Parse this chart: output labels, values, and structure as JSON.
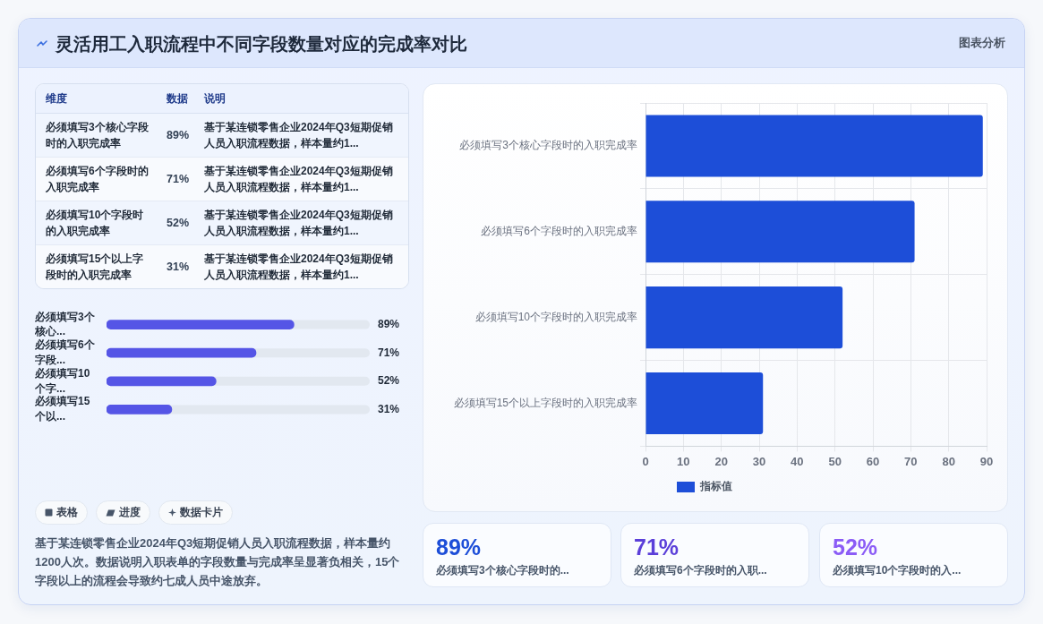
{
  "chart_data": [
    {
      "type": "other",
      "title": "灵活用工入职流程中不同字段数量对应的完成率对比",
      "annotations": [
        "图表分析"
      ]
    },
    {
      "type": "other",
      "categories": [
        "必须填写3个核心字段时的入职完成率",
        "必须填写6个字段时的入职完成率",
        "必须填写10个字段时的入职完成率",
        "必须填写15个以上字段时的入职完成率"
      ],
      "value_labels": [
        "89%",
        "71%",
        "52%",
        "31%"
      ],
      "annotations": [
        "维度",
        "数据",
        "说明",
        "基于某连锁零售企业2024年Q3短期促销人员入职流程数据，样本量约1...",
        "基于某连锁零售企业2024年Q3短期促销人员入职流程数据，样本量约1...",
        "基于某连锁零售企业2024年Q3短期促销人员入职流程数据，样本量约1...",
        "基于某连锁零售企业2024年Q3短期促销人员入职流程数据，样本量约1..."
      ]
    },
    {
      "type": "bar",
      "orientation": "horizontal",
      "categories": [
        "必须填写3个核心...",
        "必须填写6个字段...",
        "必须填写10个字...",
        "必须填写15个以..."
      ],
      "values": [
        89,
        71,
        52,
        31
      ],
      "color": "#5555e6",
      "xlim": [
        0,
        125
      ],
      "tick_labels": "y",
      "value_labels": [
        "89%",
        "71%",
        "52%",
        "31%"
      ]
    },
    {
      "type": "other",
      "annotations": [
        "表格",
        "进度",
        "数据卡片",
        "基于某连锁零售企业2024年Q3短期促销人员入职流程数据，样本量约1200人次。数据说明入职表单的字段数量与完成率呈显著负相关，15个字段以上的流程会导致约七成人员中途放弃。"
      ]
    },
    {
      "type": "bar",
      "orientation": "horizontal",
      "categories": [
        "必须填写3个核心字段时的入职完成率",
        "必须填写6个字段时的入职完成率",
        "必须填写10个字段时的入职完成率",
        "必须填写15个以上字段时的入职完成率"
      ],
      "series": [
        {
          "name": "指标值",
          "color": "#1d4ed8",
          "values": [
            89,
            71,
            52,
            31
          ]
        }
      ],
      "xlim": [
        0,
        90
      ],
      "xticks": [
        0,
        10,
        20,
        30,
        40,
        50,
        60,
        70,
        80,
        90
      ],
      "grid": true,
      "legend": "bottom"
    },
    {
      "type": "other",
      "categories": [
        "必须填写3个核心字段时的...",
        "必须填写6个字段时的入职...",
        "必须填写10个字段时的入..."
      ],
      "value_labels": [
        "89%",
        "71%",
        "52%"
      ]
    }
  ]
}
